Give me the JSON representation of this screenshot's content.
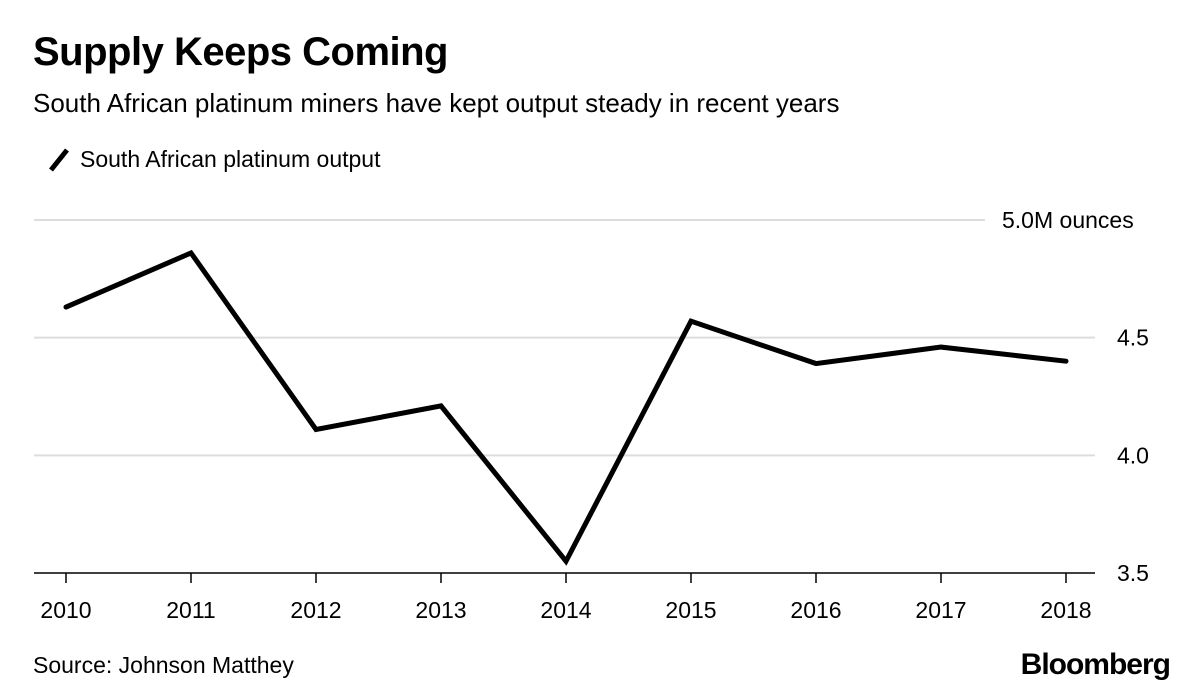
{
  "header": {
    "title": "Supply Keeps Coming",
    "subtitle": "South African platinum miners have kept output steady in recent years"
  },
  "footer": {
    "source": "Source: Johnson Matthey",
    "brand": "Bloomberg"
  },
  "chart_data": {
    "type": "line",
    "title": "Supply Keeps Coming",
    "subtitle": "South African platinum miners have kept output steady in recent years",
    "xlabel": "",
    "ylabel": "M ounces",
    "x": [
      "2010",
      "2011",
      "2012",
      "2013",
      "2014",
      "2015",
      "2016",
      "2017",
      "2018"
    ],
    "series": [
      {
        "name": "South African platinum output",
        "color": "#000000",
        "values": [
          4.63,
          4.86,
          4.11,
          4.21,
          3.55,
          4.57,
          4.39,
          4.46,
          4.4
        ]
      }
    ],
    "ylim": [
      3.5,
      5.0
    ],
    "yticks": [
      {
        "value": 5.0,
        "label": "5.0M ounces"
      },
      {
        "value": 4.5,
        "label": "4.5"
      },
      {
        "value": 4.0,
        "label": "4.0"
      },
      {
        "value": 3.5,
        "label": "3.5"
      }
    ],
    "y_axis_position": "right",
    "grid": true,
    "grid_color": "#dddddd",
    "legend": "top-left"
  }
}
